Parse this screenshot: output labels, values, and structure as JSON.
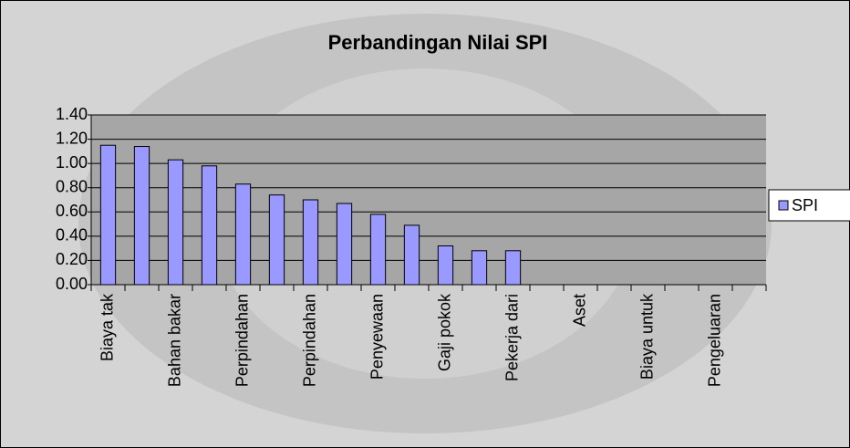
{
  "chart_data": {
    "type": "bar",
    "title": "Perbandingan Nilai SPI",
    "categories": [
      "Biaya tak",
      null,
      "Bahan bakar",
      null,
      "Perpindahan",
      null,
      "Perpindahan",
      null,
      "Penyewaan",
      null,
      "Gaji pokok",
      null,
      "Pekerja dari",
      null,
      "Aset",
      null,
      "Biaya untuk",
      null,
      "Pengeluaran",
      null
    ],
    "series": [
      {
        "name": "SPI",
        "color": "#9999ff",
        "values": [
          1.15,
          1.14,
          1.03,
          0.98,
          0.83,
          0.74,
          0.7,
          0.67,
          0.58,
          0.49,
          0.32,
          0.28,
          0.28,
          null,
          null,
          null,
          null,
          null,
          null,
          null
        ]
      }
    ],
    "ylim": [
      0,
      1.4
    ],
    "yticks": [
      {
        "value": 0,
        "label": "0.00"
      },
      {
        "value": 0.2,
        "label": "0.20"
      },
      {
        "value": 0.4,
        "label": "0.40"
      },
      {
        "value": 0.6,
        "label": "0.60"
      },
      {
        "value": 0.8,
        "label": "0.80"
      },
      {
        "value": 1.0,
        "label": "1.00"
      },
      {
        "value": 1.2,
        "label": "1.20"
      },
      {
        "value": 1.4,
        "label": "1.40"
      }
    ],
    "grid": true,
    "legend": "right"
  }
}
